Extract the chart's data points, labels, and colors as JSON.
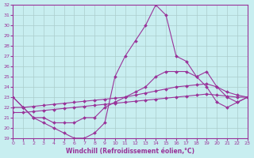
{
  "xlabel": "Windchill (Refroidissement éolien,°C)",
  "bg_color": "#c8eef0",
  "grid_color": "#aacccc",
  "line_color": "#993399",
  "xlim": [
    0,
    23
  ],
  "ylim": [
    19,
    32
  ],
  "xticks": [
    0,
    1,
    2,
    3,
    4,
    5,
    6,
    7,
    8,
    9,
    10,
    11,
    12,
    13,
    14,
    15,
    16,
    17,
    18,
    19,
    20,
    21,
    22,
    23
  ],
  "yticks": [
    19,
    20,
    21,
    22,
    23,
    24,
    25,
    26,
    27,
    28,
    29,
    30,
    31,
    32
  ],
  "line1_x": [
    0,
    1,
    2,
    3,
    4,
    5,
    6,
    7,
    8,
    9,
    10,
    11,
    12,
    13,
    14,
    15,
    16,
    17,
    18,
    19,
    20,
    21,
    22,
    23
  ],
  "line1_y": [
    23,
    22,
    21,
    20.5,
    20,
    19.5,
    19,
    19,
    19.5,
    20.5,
    25,
    27,
    28.5,
    30,
    32,
    31,
    27,
    26.5,
    25,
    24,
    22.5,
    22,
    22.5,
    23
  ],
  "line2_x": [
    0,
    1,
    2,
    3,
    4,
    5,
    6,
    7,
    8,
    9,
    10,
    11,
    12,
    13,
    14,
    15,
    16,
    17,
    18,
    19,
    20,
    21,
    22,
    23
  ],
  "line2_y": [
    23,
    22,
    21,
    21,
    20.5,
    20.5,
    20.5,
    21,
    21,
    22,
    22.5,
    23,
    23.5,
    24,
    25,
    25.5,
    25.5,
    25.5,
    25,
    25.5,
    24,
    23,
    22.5,
    23
  ],
  "line3_x": [
    0,
    1,
    2,
    3,
    4,
    5,
    6,
    7,
    8,
    9,
    10,
    11,
    12,
    13,
    14,
    15,
    16,
    17,
    18,
    19,
    20,
    21,
    22,
    23
  ],
  "line3_y": [
    21.5,
    21.5,
    21.6,
    21.7,
    21.8,
    21.9,
    22.0,
    22.1,
    22.2,
    22.3,
    22.4,
    22.5,
    22.6,
    22.7,
    22.8,
    22.9,
    23.0,
    23.1,
    23.2,
    23.3,
    23.2,
    23.1,
    23.0,
    23.0
  ],
  "line4_x": [
    0,
    1,
    2,
    3,
    4,
    5,
    6,
    7,
    8,
    9,
    10,
    11,
    12,
    13,
    14,
    15,
    16,
    17,
    18,
    19,
    20,
    21,
    22,
    23
  ],
  "line4_y": [
    22.0,
    22.0,
    22.1,
    22.2,
    22.3,
    22.4,
    22.5,
    22.6,
    22.7,
    22.8,
    22.9,
    23.0,
    23.2,
    23.4,
    23.6,
    23.8,
    24.0,
    24.1,
    24.2,
    24.3,
    24.0,
    23.5,
    23.2,
    23.0
  ]
}
